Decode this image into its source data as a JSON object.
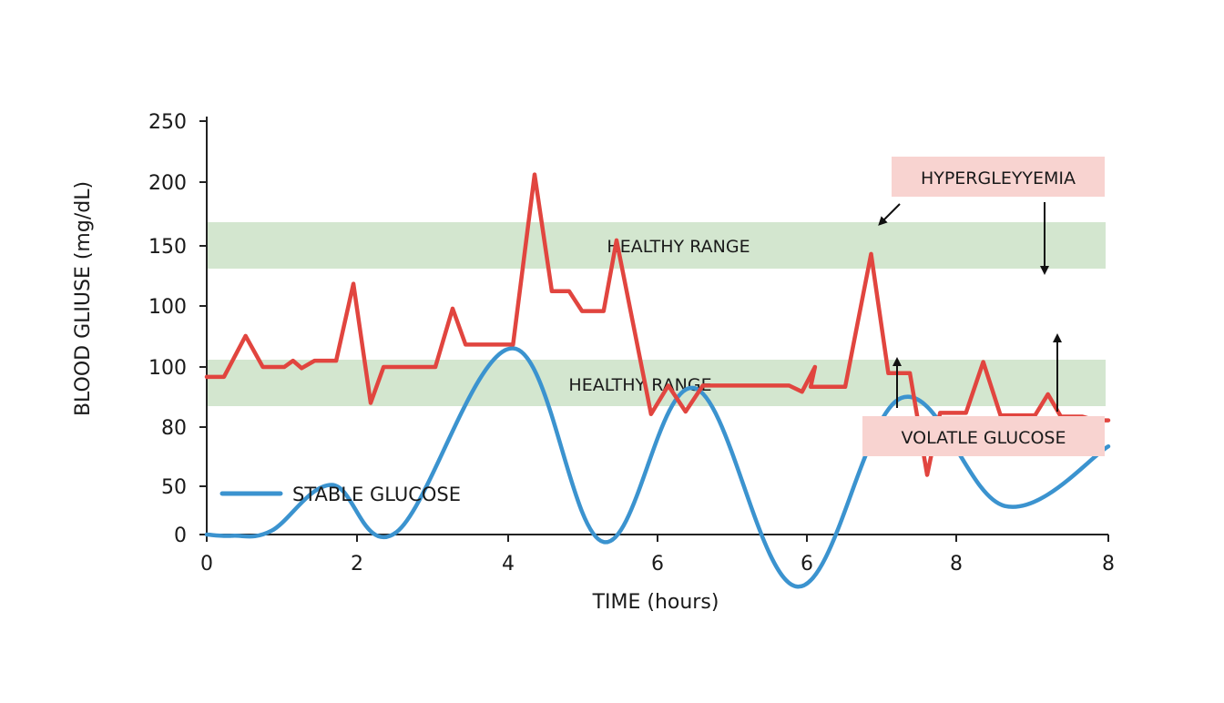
{
  "chart_data": {
    "type": "line",
    "title": "",
    "xlabel": "TIME (hours)",
    "ylabel": "BLOOD GLIUSE (mg/dL)",
    "x_tick_labels": [
      "0",
      "2",
      "4",
      "6",
      "6",
      "8",
      "8"
    ],
    "y_tick_labels": [
      "0",
      "50",
      "80",
      "100",
      "100",
      "150",
      "200",
      "250"
    ],
    "grid": false,
    "legend_position": "bottom-left",
    "bands": [
      {
        "label": "HEALTHY RANGE",
        "y_range": [
          130,
          168
        ],
        "color": "#d3e6cf"
      },
      {
        "label": "HEALTHY RANGE",
        "y_range": [
          23,
          60
        ],
        "color": "#d3e6cf"
      }
    ],
    "annotations": [
      {
        "text": "HYPERGLEYYEMIA",
        "box_color": "#f8d3d0"
      },
      {
        "text": "VOLATLE GLUCOSE",
        "box_color": "#f8d3d0"
      }
    ],
    "series": [
      {
        "name": "",
        "color": "#e1453f",
        "smooth": false,
        "points": [
          [
            0,
            127
          ],
          [
            0.2,
            127
          ],
          [
            0.45,
            160
          ],
          [
            0.65,
            135
          ],
          [
            0.9,
            135
          ],
          [
            1.0,
            140
          ],
          [
            1.1,
            134
          ],
          [
            1.25,
            140
          ],
          [
            1.5,
            140
          ],
          [
            1.7,
            202
          ],
          [
            1.9,
            106
          ],
          [
            2.05,
            135
          ],
          [
            2.65,
            135
          ],
          [
            2.85,
            182
          ],
          [
            3.0,
            153
          ],
          [
            3.55,
            153
          ],
          [
            3.8,
            290
          ],
          [
            4.0,
            196
          ],
          [
            4.2,
            196
          ],
          [
            4.35,
            180
          ],
          [
            4.6,
            180
          ],
          [
            4.75,
            237
          ],
          [
            5.15,
            97
          ],
          [
            5.35,
            120
          ],
          [
            5.55,
            99
          ],
          [
            5.75,
            120
          ],
          [
            6.75,
            120
          ],
          [
            6.9,
            115
          ],
          [
            7.05,
            135
          ],
          [
            7.0,
            119
          ],
          [
            7.4,
            119
          ],
          [
            7.7,
            226
          ],
          [
            7.9,
            130
          ],
          [
            8.15,
            130
          ],
          [
            8.35,
            48
          ],
          [
            8.5,
            98
          ],
          [
            8.8,
            98
          ],
          [
            9.0,
            139
          ],
          [
            9.2,
            96
          ],
          [
            9.6,
            96
          ],
          [
            9.75,
            113
          ],
          [
            9.9,
            95
          ],
          [
            10.15,
            95
          ],
          [
            10.3,
            92
          ],
          [
            10.45,
            92
          ]
        ]
      },
      {
        "name": "STABLE GLUCOSE",
        "color": "#3b93cf",
        "smooth": true,
        "points": [
          [
            0,
            0
          ],
          [
            0.3,
            -1
          ],
          [
            0.75,
            3
          ],
          [
            1.45,
            40
          ],
          [
            2.2,
            2
          ],
          [
            3.55,
            150
          ],
          [
            4.6,
            -6
          ],
          [
            5.65,
            118
          ],
          [
            6.85,
            -42
          ],
          [
            8.05,
            110
          ],
          [
            9.25,
            23
          ],
          [
            10.45,
            71
          ]
        ]
      }
    ]
  }
}
